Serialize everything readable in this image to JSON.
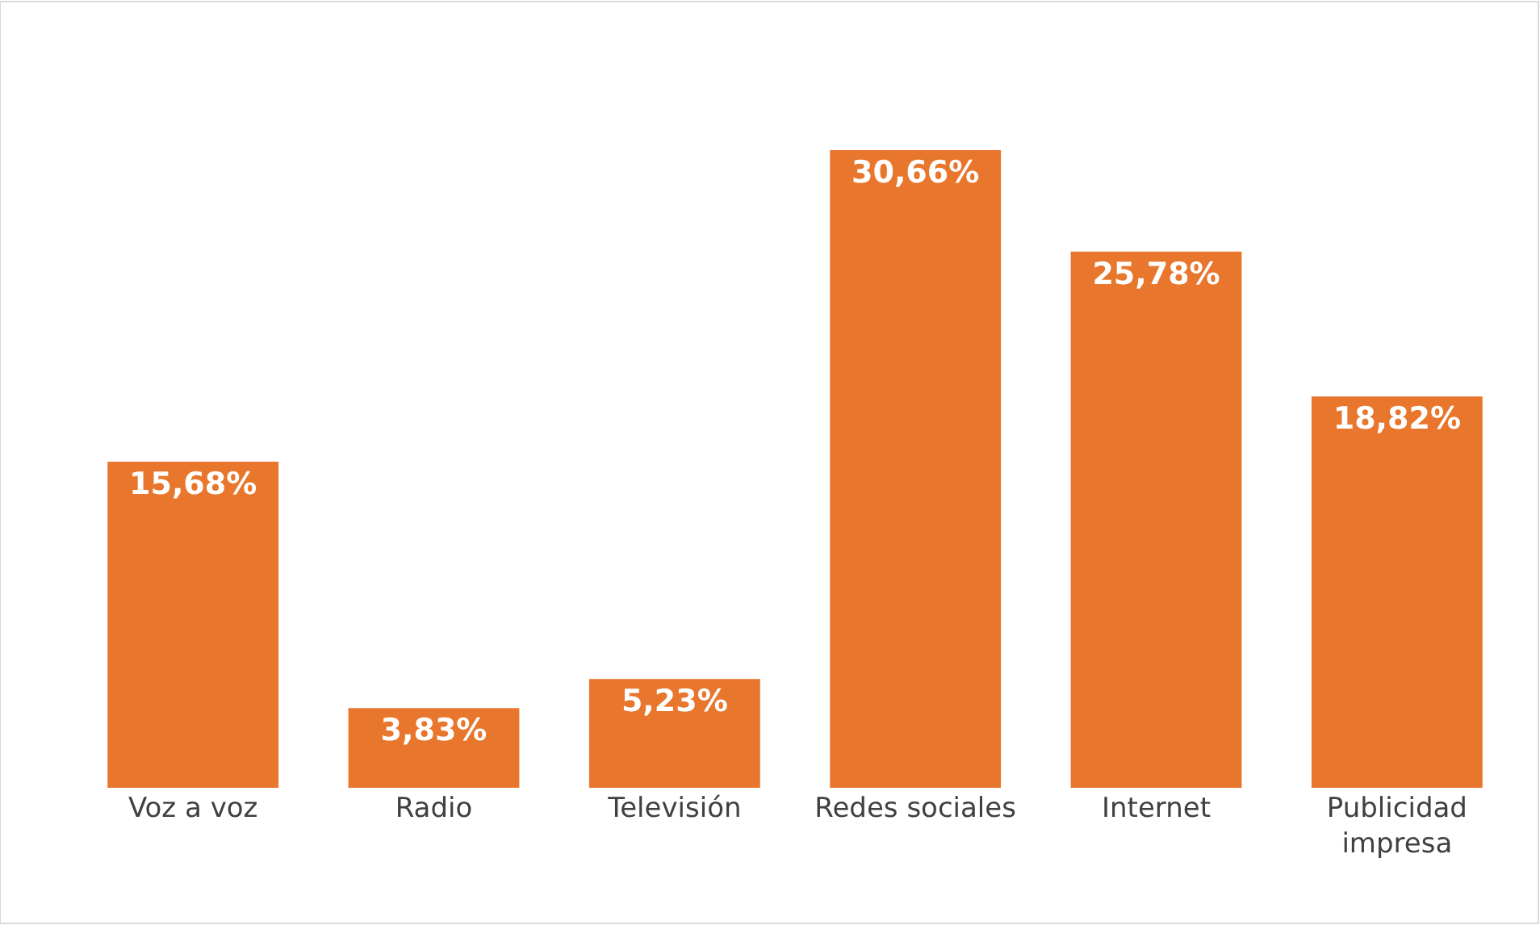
{
  "chart_data": {
    "type": "bar",
    "categories": [
      "Voz a voz",
      "Radio",
      "Televisión",
      "Redes sociales",
      "Internet",
      "Publicidad impresa"
    ],
    "values": [
      15.68,
      3.83,
      5.23,
      30.66,
      25.78,
      18.82
    ],
    "value_labels": [
      "15,68%",
      "3,83%",
      "5,23%",
      "30,66%",
      "25,78%",
      "18,82%"
    ],
    "color": "#e8762c"
  }
}
